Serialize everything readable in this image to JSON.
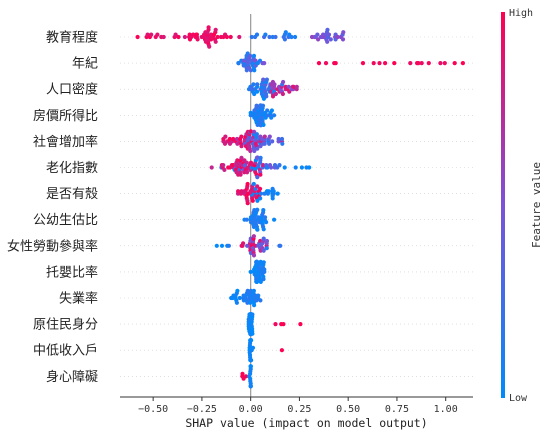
{
  "chart_data": {
    "type": "scatter",
    "subtype": "shap-beeswarm",
    "title": "",
    "xlabel": "SHAP value (impact on model output)",
    "ylabel": "",
    "xlim": [
      -0.67,
      1.14
    ],
    "xticks": [
      -0.5,
      -0.25,
      0.0,
      0.25,
      0.5,
      0.75,
      1.0
    ],
    "xtick_labels": [
      "−0.50",
      "−0.25",
      "0.00",
      "0.25",
      "0.50",
      "0.75",
      "1.00"
    ],
    "grid": false,
    "colorbar": {
      "label": "Feature value",
      "high_label": "High",
      "low_label": "Low",
      "low_color": "#008bfb",
      "high_color": "#ff0052"
    },
    "features": [
      {
        "name": "教育程度",
        "x_range": [
          -0.58,
          0.52
        ],
        "n": 95,
        "clusters": [
          {
            "center": -0.2,
            "spread": 0.07,
            "n": 40,
            "color": [
              0.85,
              1.0
            ]
          },
          {
            "center": -0.45,
            "spread": 0.1,
            "n": 14,
            "color": [
              0.8,
              1.0
            ]
          },
          {
            "center": 0.4,
            "spread": 0.05,
            "n": 25,
            "color": [
              0.3,
              0.6
            ]
          },
          {
            "center": 0.1,
            "spread": 0.1,
            "n": 16,
            "color": [
              0.05,
              0.3
            ]
          }
        ]
      },
      {
        "name": "年紀",
        "x_range": [
          -0.07,
          1.1
        ],
        "n": 60,
        "clusters": [
          {
            "center": -0.01,
            "spread": 0.03,
            "n": 35,
            "color": [
              0.0,
              0.5
            ]
          },
          {
            "center": 0.8,
            "spread": 0.15,
            "n": 13,
            "color": [
              0.9,
              1.0
            ]
          },
          {
            "center": 0.4,
            "spread": 0.05,
            "n": 3,
            "color": [
              0.9,
              1.0
            ]
          },
          {
            "center": 1.08,
            "spread": 0.02,
            "n": 2,
            "color": [
              0.95,
              1.0
            ]
          }
        ]
      },
      {
        "name": "人口密度",
        "x_range": [
          -0.02,
          0.27
        ],
        "n": 70,
        "clusters": [
          {
            "center": 0.06,
            "spread": 0.04,
            "n": 35,
            "color": [
              0.0,
              0.4
            ]
          },
          {
            "center": 0.16,
            "spread": 0.05,
            "n": 30,
            "color": [
              0.4,
              0.9
            ]
          }
        ]
      },
      {
        "name": "房價所得比",
        "x_range": [
          0.0,
          0.12
        ],
        "n": 45,
        "clusters": [
          {
            "center": 0.05,
            "spread": 0.03,
            "n": 45,
            "color": [
              0.0,
              0.25
            ]
          }
        ]
      },
      {
        "name": "社會增加率",
        "x_range": [
          -0.14,
          0.2
        ],
        "n": 80,
        "clusters": [
          {
            "center": -0.03,
            "spread": 0.05,
            "n": 40,
            "color": [
              0.7,
              1.0
            ]
          },
          {
            "center": 0.06,
            "spread": 0.05,
            "n": 35,
            "color": [
              0.05,
              0.6
            ]
          }
        ]
      },
      {
        "name": "老化指數",
        "x_range": [
          -0.2,
          0.3
        ],
        "n": 85,
        "clusters": [
          {
            "center": -0.03,
            "spread": 0.06,
            "n": 45,
            "color": [
              0.75,
              1.0
            ]
          },
          {
            "center": 0.05,
            "spread": 0.06,
            "n": 30,
            "color": [
              0.0,
              0.5
            ]
          },
          {
            "center": 0.25,
            "spread": 0.04,
            "n": 4,
            "color": [
              0.0,
              0.1
            ]
          }
        ]
      },
      {
        "name": "是否有殼",
        "x_range": [
          -0.08,
          0.14
        ],
        "n": 55,
        "clusters": [
          {
            "center": -0.01,
            "spread": 0.03,
            "n": 30,
            "color": [
              0.8,
              1.0
            ]
          },
          {
            "center": 0.07,
            "spread": 0.04,
            "n": 20,
            "color": [
              0.0,
              0.15
            ]
          }
        ]
      },
      {
        "name": "公幼生估比",
        "x_range": [
          -0.04,
          0.12
        ],
        "n": 40,
        "clusters": [
          {
            "center": 0.03,
            "spread": 0.03,
            "n": 40,
            "color": [
              0.0,
              0.2
            ]
          }
        ]
      },
      {
        "name": "女性勞動參與率",
        "x_range": [
          -0.2,
          0.18
        ],
        "n": 50,
        "clusters": [
          {
            "center": 0.02,
            "spread": 0.04,
            "n": 35,
            "color": [
              0.3,
              1.0
            ]
          },
          {
            "center": -0.15,
            "spread": 0.04,
            "n": 4,
            "color": [
              0.0,
              0.15
            ]
          },
          {
            "center": 0.14,
            "spread": 0.03,
            "n": 3,
            "color": [
              0.05,
              0.3
            ]
          }
        ]
      },
      {
        "name": "托嬰比率",
        "x_range": [
          0.0,
          0.07
        ],
        "n": 40,
        "clusters": [
          {
            "center": 0.035,
            "spread": 0.02,
            "n": 40,
            "color": [
              0.0,
              0.15
            ]
          }
        ]
      },
      {
        "name": "失業率",
        "x_range": [
          -0.1,
          0.05
        ],
        "n": 40,
        "clusters": [
          {
            "center": 0.0,
            "spread": 0.03,
            "n": 30,
            "color": [
              0.0,
              0.2
            ]
          },
          {
            "center": -0.08,
            "spread": 0.02,
            "n": 8,
            "color": [
              0.0,
              0.1
            ]
          }
        ]
      },
      {
        "name": "原住民身分",
        "x_range": [
          -0.01,
          0.27
        ],
        "n": 30,
        "clusters": [
          {
            "center": 0.0,
            "spread": 0.008,
            "n": 24,
            "color": [
              0.0,
              0.1
            ]
          },
          {
            "center": 0.13,
            "spread": 0.02,
            "n": 3,
            "color": [
              0.95,
              1.0
            ]
          },
          {
            "center": 0.26,
            "spread": 0.01,
            "n": 1,
            "color": [
              1.0,
              1.0
            ]
          }
        ]
      },
      {
        "name": "中低收入戶",
        "x_range": [
          -0.01,
          0.16
        ],
        "n": 20,
        "clusters": [
          {
            "center": 0.0,
            "spread": 0.005,
            "n": 19,
            "color": [
              0.0,
              0.1
            ]
          },
          {
            "center": 0.16,
            "spread": 0.0,
            "n": 1,
            "color": [
              1.0,
              1.0
            ]
          }
        ]
      },
      {
        "name": "身心障礙",
        "x_range": [
          -0.05,
          0.0
        ],
        "n": 20,
        "clusters": [
          {
            "center": 0.0,
            "spread": 0.004,
            "n": 16,
            "color": [
              0.0,
              0.1
            ]
          },
          {
            "center": -0.035,
            "spread": 0.01,
            "n": 4,
            "color": [
              0.95,
              1.0
            ]
          }
        ]
      }
    ]
  }
}
